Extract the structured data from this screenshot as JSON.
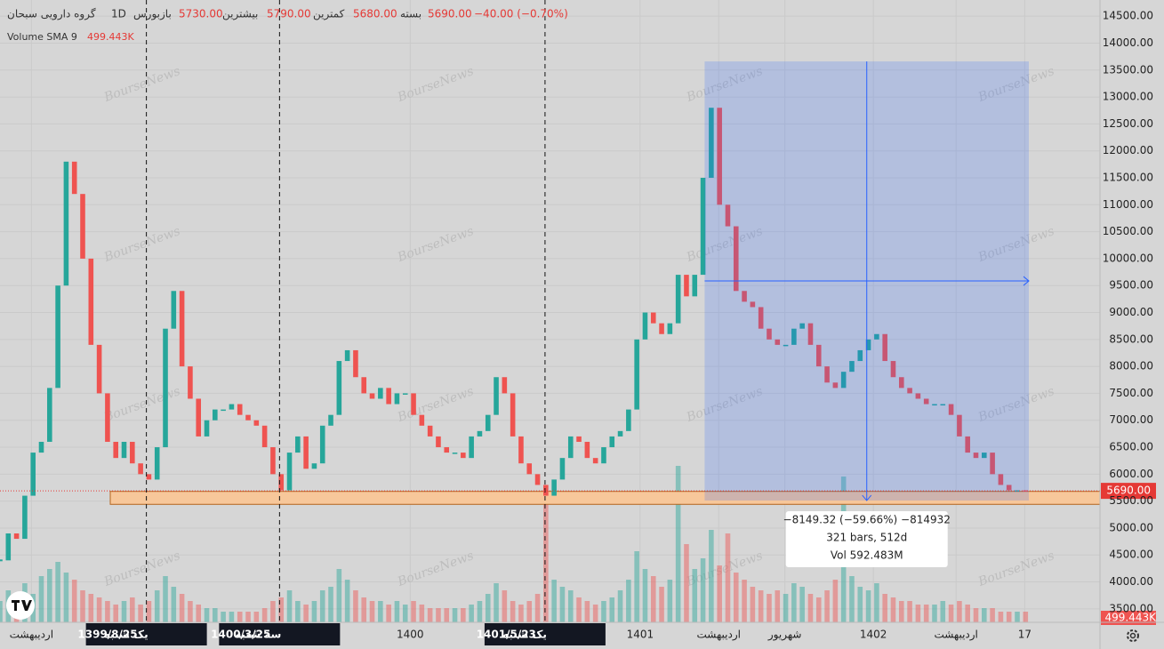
{
  "header": {
    "symbol": "گروه دارویی سبحان",
    "interval": "1D",
    "exchange": "بورس",
    "ohlc": [
      {
        "label": "باز",
        "value": "5730.00"
      },
      {
        "label": "بیشترین",
        "value": "5790.00"
      },
      {
        "label": "کمترین",
        "value": "5680.00"
      },
      {
        "label": "بسته",
        "value": "5690.00"
      }
    ],
    "change": "−40.00 (−0.70%)"
  },
  "watermark": "BourseNews",
  "chart_data": [
    {
      "type": "candlestick",
      "up_color": "#26a69a",
      "down_color": "#ef5350",
      "grid": true,
      "xlim": [
        0,
        133
      ],
      "ylim": [
        3250,
        14800
      ],
      "yticks": [
        {
          "value": 3500,
          "label": "3500.00"
        },
        {
          "value": 4000,
          "label": "4000.00"
        },
        {
          "value": 4500,
          "label": "4500.00"
        },
        {
          "value": 5000,
          "label": "5000.00"
        },
        {
          "value": 5500,
          "label": "5500.00"
        },
        {
          "value": 6000,
          "label": "6000.00"
        },
        {
          "value": 6500,
          "label": "6500.00"
        },
        {
          "value": 7000,
          "label": "7000.00"
        },
        {
          "value": 7500,
          "label": "7500.00"
        },
        {
          "value": 8000,
          "label": "8000.00"
        },
        {
          "value": 8500,
          "label": "8500.00"
        },
        {
          "value": 9000,
          "label": "9000.00"
        },
        {
          "value": 9500,
          "label": "9500.00"
        },
        {
          "value": 10000,
          "label": "10000.00"
        },
        {
          "value": 10500,
          "label": "10500.00"
        },
        {
          "value": 11000,
          "label": "11000.00"
        },
        {
          "value": 11500,
          "label": "11500.00"
        },
        {
          "value": 12000,
          "label": "12000.00"
        },
        {
          "value": 12500,
          "label": "12500.00"
        },
        {
          "value": 13000,
          "label": "13000.00"
        },
        {
          "value": 13500,
          "label": "13500.00"
        },
        {
          "value": 14000,
          "label": "14000.00"
        },
        {
          "value": 14500,
          "label": "14500.00"
        }
      ],
      "xticks": [
        {
          "value": 3.8,
          "label": "اردیبهشت"
        },
        {
          "value": 49.6,
          "label": "1400"
        },
        {
          "value": 77.4,
          "label": "1401"
        },
        {
          "value": 86.9,
          "label": "اردیبهشت"
        },
        {
          "value": 94.9,
          "label": "شهریور"
        },
        {
          "value": 105.6,
          "label": "1402"
        },
        {
          "value": 115.6,
          "label": "اردیبهشت"
        },
        {
          "value": 123.9,
          "label": "17"
        }
      ],
      "close": [
        4400,
        4900,
        4800,
        5600,
        6400,
        6600,
        7600,
        9500,
        11800,
        11200,
        10000,
        8400,
        7500,
        6600,
        6300,
        6600,
        6200,
        6000,
        5900,
        6500,
        8700,
        9400,
        8000,
        7400,
        6700,
        7000,
        7200,
        7200,
        7300,
        7100,
        7000,
        6900,
        6500,
        6000,
        5700,
        6400,
        6700,
        6100,
        6200,
        6900,
        7100,
        8100,
        8300,
        7800,
        7500,
        7400,
        7600,
        7300,
        7500,
        7500,
        7100,
        6900,
        6700,
        6500,
        6400,
        6400,
        6300,
        6700,
        6800,
        7100,
        7800,
        7500,
        6700,
        6200,
        6000,
        5800,
        5600,
        5900,
        6300,
        6700,
        6600,
        6300,
        6200,
        6500,
        6700,
        6800,
        7200,
        8500,
        9000,
        8800,
        8600,
        8800,
        9700,
        9300,
        9700,
        11500,
        12800,
        11000,
        10600,
        9400,
        9200,
        9100,
        8700,
        8500,
        8400,
        8400,
        8700,
        8800,
        8400,
        8000,
        7700,
        7600,
        7900,
        8100,
        8300,
        8500,
        8600,
        8100,
        7800,
        7600,
        7500,
        7400,
        7300,
        7300,
        7300,
        7100,
        6700,
        6400,
        6300,
        6400,
        6000,
        5800,
        5700,
        5700,
        5690
      ],
      "last_price": {
        "value": 5690,
        "label": "5690.00"
      },
      "zone": [
        5440,
        5680
      ],
      "zone_color": "#f7c79a",
      "markers": [
        {
          "x": 17.7,
          "weekday": "یک شنبه",
          "date": "1399/8/25"
        },
        {
          "x": 33.8,
          "weekday": "سه شنبه",
          "date": "1400/3/25"
        },
        {
          "x": 65.9,
          "weekday": "یک شنبه",
          "date": "1401/5/23"
        }
      ],
      "measure": {
        "x": [
          85.2,
          124.4
        ],
        "y": [
          5510,
          13660
        ],
        "change": "−8149.32 (−59.66%) −814932",
        "bars": "321 bars, 512d",
        "volume": "Vol 592.483M"
      }
    },
    {
      "type": "bar",
      "label": "Volume SMA 9",
      "ylim": [
        0,
        17500000
      ],
      "sma": {
        "value": 499443,
        "label": "499.443K"
      },
      "values": [
        600000,
        900000,
        700000,
        1100000,
        800000,
        1300000,
        1500000,
        1700000,
        1400000,
        1200000,
        900000,
        800000,
        700000,
        600000,
        500000,
        600000,
        700000,
        500000,
        600000,
        900000,
        1300000,
        1000000,
        800000,
        600000,
        500000,
        400000,
        400000,
        300000,
        300000,
        300000,
        300000,
        300000,
        400000,
        600000,
        700000,
        900000,
        600000,
        500000,
        600000,
        900000,
        1000000,
        1500000,
        1200000,
        900000,
        700000,
        600000,
        600000,
        500000,
        600000,
        500000,
        600000,
        500000,
        400000,
        400000,
        400000,
        400000,
        400000,
        500000,
        600000,
        800000,
        1100000,
        900000,
        600000,
        500000,
        600000,
        800000,
        3500000,
        1200000,
        1000000,
        900000,
        700000,
        600000,
        500000,
        600000,
        700000,
        900000,
        1200000,
        2000000,
        1500000,
        1300000,
        1000000,
        1200000,
        4400000,
        2200000,
        1500000,
        1800000,
        2600000,
        1600000,
        2500000,
        1400000,
        1200000,
        1000000,
        900000,
        800000,
        900000,
        800000,
        1100000,
        1000000,
        800000,
        700000,
        900000,
        1200000,
        4100000,
        1300000,
        1000000,
        900000,
        1100000,
        800000,
        700000,
        600000,
        600000,
        500000,
        500000,
        500000,
        600000,
        500000,
        600000,
        500000,
        400000,
        400000,
        400000,
        300000,
        300000,
        300000,
        300000
      ]
    }
  ]
}
